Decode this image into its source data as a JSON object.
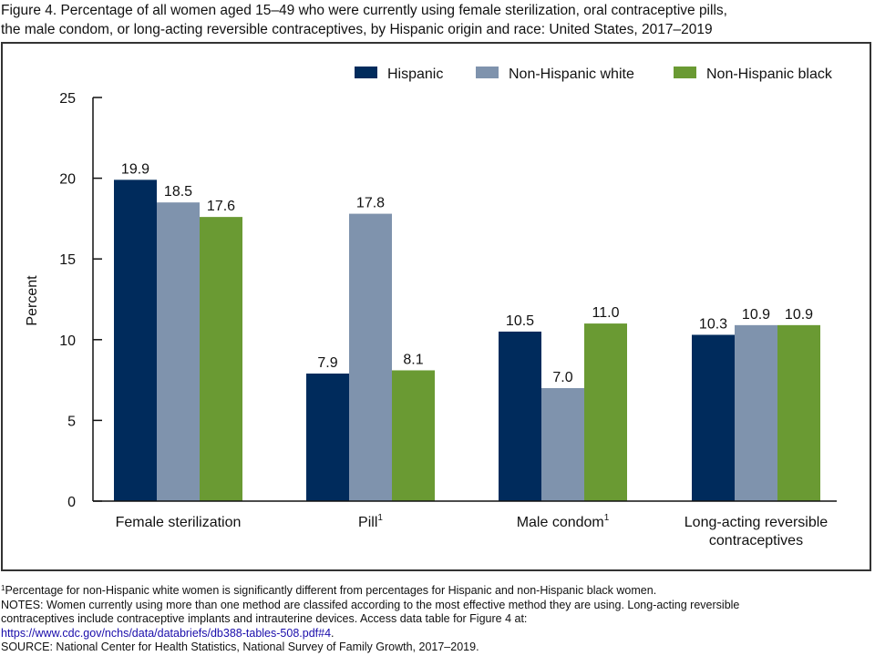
{
  "title_line1": "Figure 4. Percentage of all women aged 15–49 who were currently using female sterilization, oral contraceptive pills,",
  "title_line2": "the male condom, or long-acting reversible contraceptives, by Hispanic origin and race: United States, 2017–2019",
  "chart_data": {
    "type": "bar",
    "title": "Percentage of all women aged 15–49 who were currently using female sterilization, oral contraceptive pills, the male condom, or long-acting reversible contraceptives, by Hispanic origin and race: United States, 2017–2019",
    "xlabel": "",
    "ylabel": "Percent",
    "ylim": [
      0,
      25
    ],
    "yticks": [
      0,
      5,
      10,
      15,
      20,
      25
    ],
    "grid": false,
    "legend_position": "top-right",
    "categories": [
      {
        "label": "Female sterilization",
        "sup": ""
      },
      {
        "label": "Pill",
        "sup": "1"
      },
      {
        "label": "Male condom",
        "sup": "1"
      },
      {
        "label": "Long-acting reversible\ncontraceptives",
        "sup": ""
      }
    ],
    "series": [
      {
        "name": "Hispanic",
        "color": "#002b5c",
        "values": [
          19.9,
          7.9,
          10.5,
          10.3
        ],
        "labels": [
          "19.9",
          "7.9",
          "10.5",
          "10.3"
        ]
      },
      {
        "name": "Non-Hispanic white",
        "color": "#7f93ad",
        "values": [
          18.5,
          17.8,
          7.0,
          10.9
        ],
        "labels": [
          "18.5",
          "17.8",
          "7.0",
          "10.9"
        ]
      },
      {
        "name": "Non-Hispanic black",
        "color": "#6a9a33",
        "values": [
          17.6,
          8.1,
          11.0,
          10.9
        ],
        "labels": [
          "17.6",
          "8.1",
          "11.0",
          "10.9"
        ]
      }
    ]
  },
  "footnote_marker": "1",
  "footnote_text": "Percentage for non-Hispanic white women is significantly different from percentages for Hispanic and non-Hispanic black women.",
  "notes_line1": "NOTES: Women currently using more than one method are classifed according to the most effective method they are using. Long-acting reversible",
  "notes_line2": "contraceptives include contraceptive implants and intrauterine devices. Access data table for Figure 4 at:",
  "notes_link": "https://www.cdc.gov/nchs/data/databriefs/db388-tables-508.pdf#4",
  "notes_link_suffix": ".",
  "source": "SOURCE: National Center for Health Statistics, National Survey of Family Growth, 2017–2019."
}
